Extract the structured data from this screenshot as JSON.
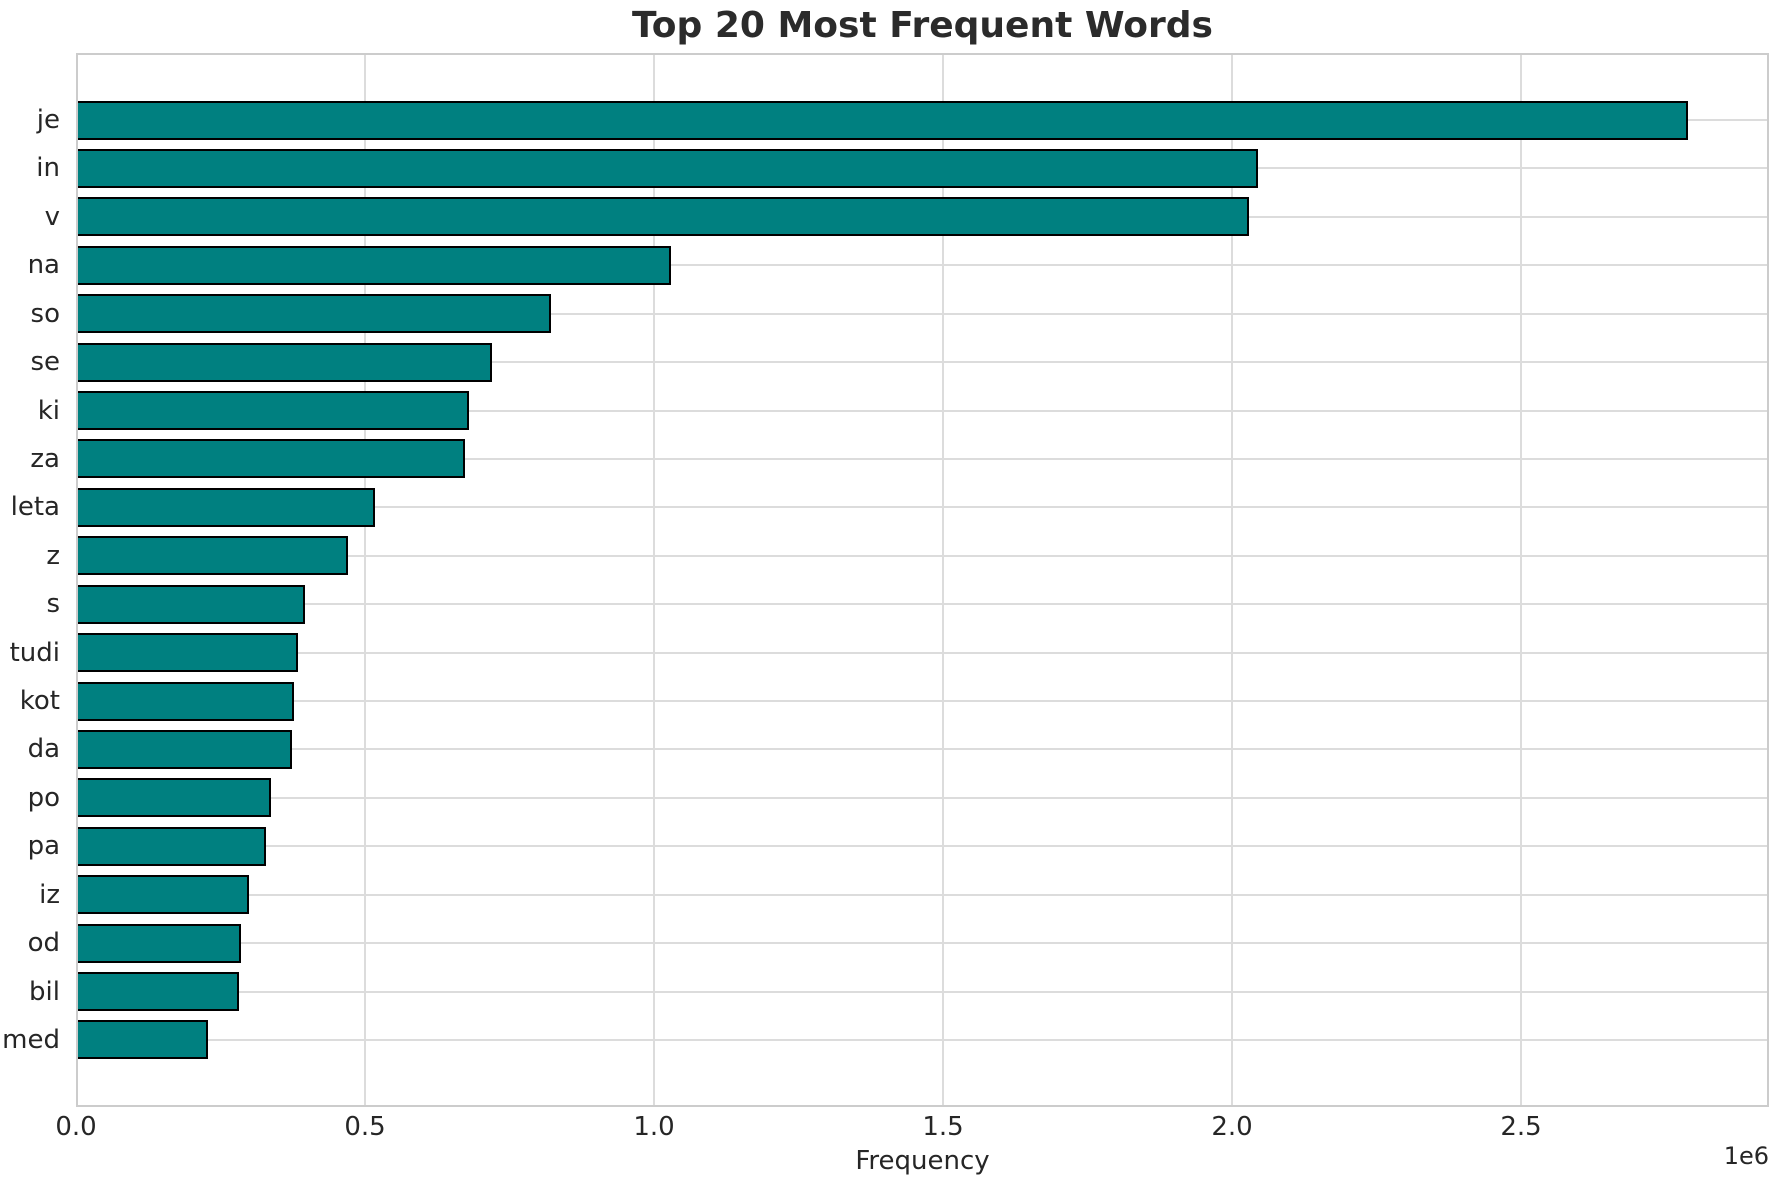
{
  "chart_data": {
    "type": "bar",
    "orientation": "horizontal",
    "title": "Top 20 Most Frequent Words",
    "xlabel": "Frequency",
    "ylabel": "",
    "x_offset_text": "1e6",
    "categories": [
      "je",
      "in",
      "v",
      "na",
      "so",
      "se",
      "ki",
      "za",
      "leta",
      "z",
      "s",
      "tudi",
      "kot",
      "da",
      "po",
      "pa",
      "iz",
      "od",
      "bil",
      "med"
    ],
    "values": [
      2790000,
      2045000,
      2030000,
      1030000,
      822000,
      720000,
      681000,
      674000,
      518000,
      470000,
      396000,
      385000,
      377000,
      373000,
      337000,
      328000,
      300000,
      285000,
      282000,
      228000
    ],
    "xlim": [
      0,
      2930000
    ],
    "xticks": [
      0,
      500000,
      1000000,
      1500000,
      2000000,
      2500000
    ],
    "xtick_labels": [
      "0.0",
      "0.5",
      "1.0",
      "1.5",
      "2.0",
      "2.5"
    ],
    "grid": true,
    "legend": "none",
    "colors": {
      "bar_fill": "#008080",
      "bar_edge": "#000000",
      "grid": "#dcdcdc",
      "spine": "#cccccc",
      "title_text": "#2b2b2b",
      "tick_text": "#262626",
      "background": "#ffffff"
    }
  }
}
